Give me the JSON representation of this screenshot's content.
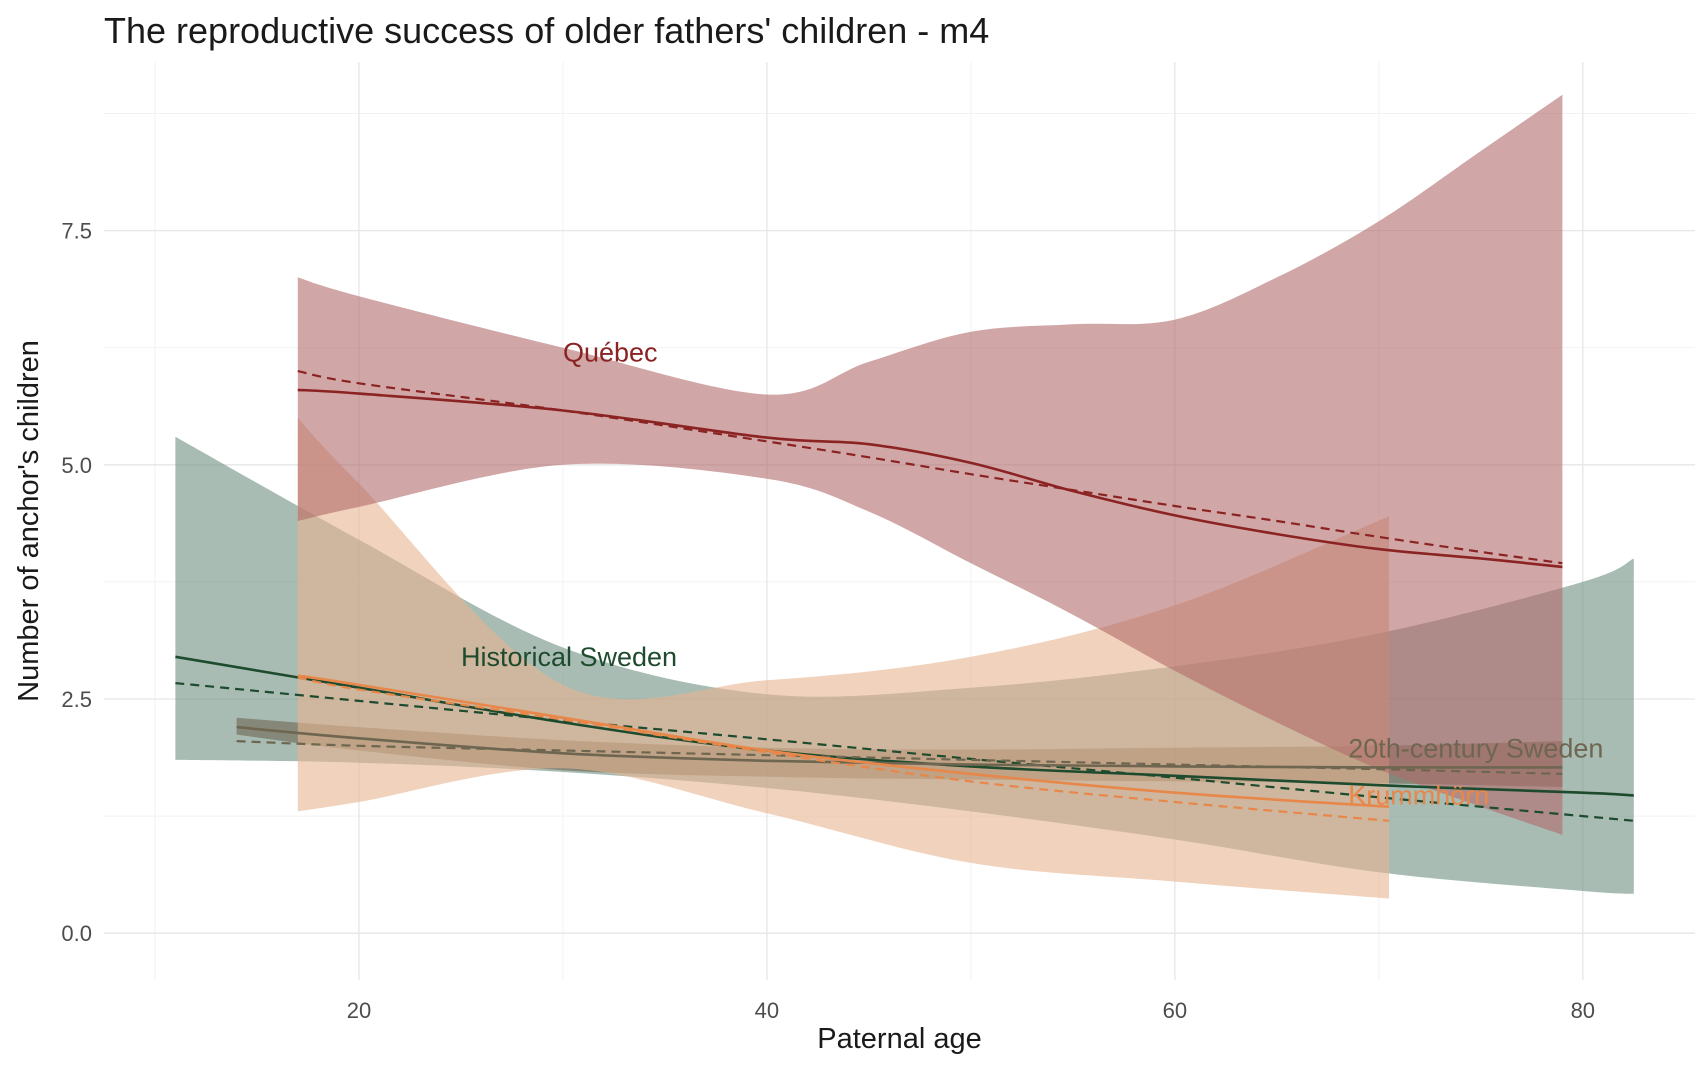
{
  "chart_data": {
    "type": "line",
    "title": "The reproductive success of older fathers' children - m4",
    "xlabel": "Paternal age",
    "ylabel": "Number of anchor's children",
    "xlim": [
      7.5,
      85.5
    ],
    "ylim": [
      -0.5,
      9.3
    ],
    "x_ticks": [
      20,
      40,
      60,
      80
    ],
    "x_tick_labels": [
      "20",
      "40",
      "60",
      "80"
    ],
    "y_ticks": [
      0,
      2.5,
      5,
      7.5
    ],
    "y_tick_labels": [
      "0.0",
      "2.5",
      "5.0",
      "7.5"
    ],
    "grid": true,
    "legend": "none (direct labels)",
    "series": [
      {
        "name": "Historical Sweden",
        "color": "#1e4a2e",
        "band_color": "#6e8f80",
        "label_position": {
          "x": 25,
          "y": 2.95
        },
        "x": [
          11,
          20,
          30,
          40,
          50,
          60,
          70,
          80,
          82.5
        ],
        "fit": [
          2.95,
          2.62,
          2.25,
          1.95,
          1.78,
          1.68,
          1.58,
          1.5,
          1.47
        ],
        "linear": [
          2.67,
          2.48,
          2.27,
          2.07,
          1.86,
          1.66,
          1.45,
          1.25,
          1.2
        ],
        "lower": [
          1.85,
          1.82,
          1.72,
          1.55,
          1.3,
          1.0,
          0.65,
          0.45,
          0.42
        ],
        "upper": [
          5.3,
          4.2,
          3.05,
          2.55,
          2.62,
          2.85,
          3.2,
          3.75,
          4.0
        ]
      },
      {
        "name": "20th-century Sweden",
        "color": "#6e6650",
        "band_color": "#6e6650",
        "label_position": {
          "x": 68.5,
          "y": 1.97
        },
        "x": [
          14,
          20,
          30,
          40,
          50,
          60,
          70,
          79
        ],
        "fit": [
          2.2,
          2.08,
          1.92,
          1.84,
          1.8,
          1.78,
          1.77,
          1.77
        ],
        "linear": [
          2.05,
          2.0,
          1.95,
          1.9,
          1.85,
          1.8,
          1.75,
          1.7
        ],
        "lower": [
          2.12,
          1.95,
          1.74,
          1.67,
          1.64,
          1.62,
          1.6,
          1.56
        ],
        "upper": [
          2.3,
          2.2,
          2.06,
          1.98,
          1.96,
          1.98,
          2.0,
          2.05
        ]
      },
      {
        "name": "Krummhörn",
        "color": "#e8874a",
        "band_color": "#e8b48f",
        "label_position": {
          "x": 68.5,
          "y": 1.47
        },
        "x": [
          17,
          20,
          30,
          40,
          50,
          60,
          70.5
        ],
        "fit": [
          2.75,
          2.65,
          2.3,
          1.95,
          1.7,
          1.5,
          1.35
        ],
        "linear": [
          2.73,
          2.6,
          2.28,
          1.93,
          1.62,
          1.4,
          1.2
        ],
        "lower": [
          1.3,
          1.4,
          1.76,
          1.28,
          0.75,
          0.55,
          0.37
        ],
        "upper": [
          5.5,
          4.8,
          2.65,
          2.7,
          2.95,
          3.5,
          4.45
        ]
      },
      {
        "name": "Québec",
        "color": "#8b2323",
        "band_color": "#b36a6a",
        "label_position": {
          "x": 30,
          "y": 6.2
        },
        "x": [
          17,
          20,
          30,
          40,
          45,
          50,
          55,
          60,
          65,
          70,
          75,
          79
        ],
        "fit": [
          5.8,
          5.76,
          5.58,
          5.29,
          5.22,
          5.02,
          4.72,
          4.46,
          4.26,
          4.1,
          4.0,
          3.91
        ],
        "linear": [
          6.0,
          5.87,
          5.58,
          5.25,
          5.08,
          4.9,
          4.73,
          4.56,
          4.4,
          4.23,
          4.07,
          3.95
        ],
        "lower": [
          4.4,
          4.55,
          5.0,
          4.85,
          4.5,
          3.95,
          3.4,
          2.8,
          2.25,
          1.75,
          1.35,
          1.05
        ],
        "upper": [
          7.0,
          6.8,
          6.25,
          5.75,
          6.1,
          6.42,
          6.5,
          6.55,
          7.0,
          7.6,
          8.35,
          8.95
        ]
      }
    ]
  }
}
